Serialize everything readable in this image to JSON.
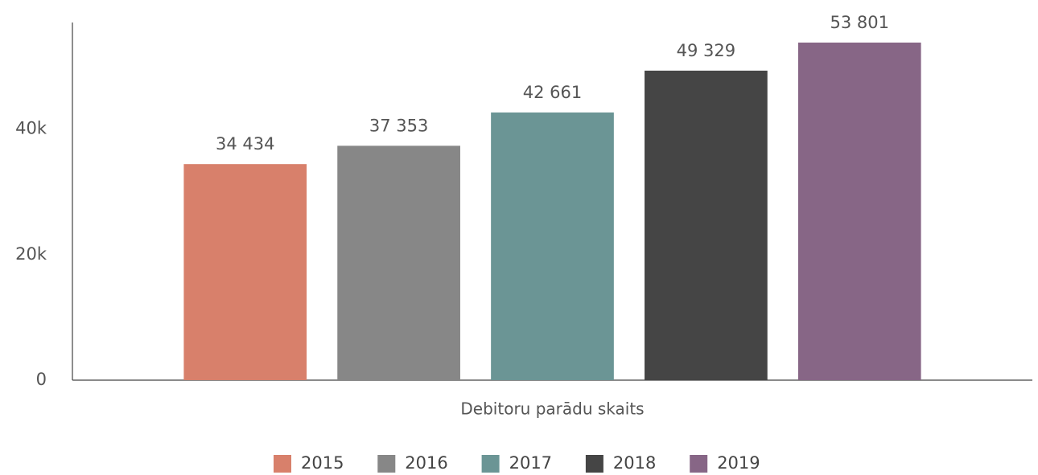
{
  "chart_data": {
    "type": "bar",
    "categories": [
      "Debitoru parādu skaits"
    ],
    "series": [
      {
        "name": "2015",
        "color": "#d8806b",
        "values": [
          34434
        ],
        "value_labels": [
          "34 434"
        ]
      },
      {
        "name": "2016",
        "color": "#878787",
        "values": [
          37353
        ],
        "value_labels": [
          "37 353"
        ]
      },
      {
        "name": "2017",
        "color": "#6b9595",
        "values": [
          42661
        ],
        "value_labels": [
          "42 661"
        ]
      },
      {
        "name": "2018",
        "color": "#454545",
        "values": [
          49329
        ],
        "value_labels": [
          "49 329"
        ]
      },
      {
        "name": "2019",
        "color": "#876686",
        "values": [
          53801
        ],
        "value_labels": [
          "53 801"
        ]
      }
    ],
    "ylim": [
      0,
      57000
    ],
    "yticks": [
      0,
      {
        "value": 20000,
        "label": "20k"
      },
      {
        "value": 40000,
        "label": "40k"
      }
    ],
    "grid": false,
    "legend": "bottom"
  }
}
